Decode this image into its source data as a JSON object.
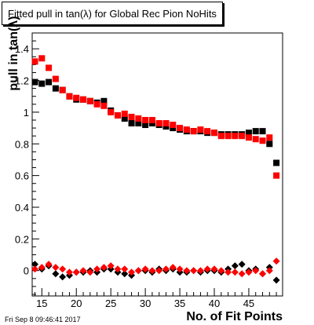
{
  "title": "Fitted pull in tan(λ) for Global Rec Pion NoHits",
  "datestamp": "Fri Sep  8 09:46:41 2017",
  "chart_data": {
    "type": "scatter",
    "title": "Fitted pull in tan(λ) for Global Rec Pion NoHits",
    "xlabel": "No. of Fit Points",
    "ylabel": "pull in tan(λ)",
    "xlim": [
      13.6,
      49.9
    ],
    "ylim": [
      -0.16,
      1.5
    ],
    "xticks": [
      15,
      20,
      25,
      30,
      35,
      40,
      45
    ],
    "yticks": [
      0,
      0.2,
      0.4,
      0.6,
      0.8,
      1,
      1.2,
      1.4
    ],
    "grid": false,
    "series": [
      {
        "color": "#000000",
        "marker": "square",
        "x": [
          14,
          15,
          16,
          17,
          18,
          19,
          20,
          21,
          22,
          23,
          24,
          25,
          26,
          27,
          28,
          29,
          30,
          31,
          32,
          33,
          34,
          35,
          36,
          37,
          38,
          39,
          40,
          41,
          42,
          43,
          44,
          45,
          46,
          47,
          48,
          49
        ],
        "y": [
          1.19,
          1.18,
          1.19,
          1.15,
          1.14,
          1.1,
          1.08,
          1.08,
          1.07,
          1.06,
          1.07,
          1.01,
          0.98,
          0.96,
          0.93,
          0.93,
          0.92,
          0.93,
          0.92,
          0.91,
          0.9,
          0.89,
          0.88,
          0.88,
          0.88,
          0.87,
          0.87,
          0.86,
          0.86,
          0.86,
          0.86,
          0.87,
          0.88,
          0.88,
          0.8,
          0.68
        ]
      },
      {
        "color": "#ff0000",
        "marker": "square",
        "x": [
          14,
          15,
          16,
          17,
          18,
          19,
          20,
          21,
          22,
          23,
          24,
          25,
          26,
          27,
          28,
          29,
          30,
          31,
          32,
          33,
          34,
          35,
          36,
          37,
          38,
          39,
          40,
          41,
          42,
          43,
          44,
          45,
          46,
          47,
          48,
          49
        ],
        "y": [
          1.32,
          1.34,
          1.28,
          1.21,
          1.14,
          1.1,
          1.09,
          1.08,
          1.07,
          1.05,
          1.04,
          1.0,
          0.98,
          0.99,
          0.97,
          0.96,
          0.95,
          0.95,
          0.93,
          0.93,
          0.92,
          0.9,
          0.89,
          0.88,
          0.89,
          0.88,
          0.87,
          0.85,
          0.85,
          0.85,
          0.85,
          0.84,
          0.83,
          0.82,
          0.84,
          0.6
        ]
      },
      {
        "color": "#000000",
        "marker": "diamond",
        "x": [
          14,
          15,
          16,
          17,
          18,
          19,
          20,
          21,
          22,
          23,
          24,
          25,
          26,
          27,
          28,
          29,
          30,
          31,
          32,
          33,
          34,
          35,
          36,
          37,
          38,
          39,
          40,
          41,
          42,
          43,
          44,
          45,
          46,
          47,
          48,
          49
        ],
        "y": [
          0.04,
          0.01,
          0.03,
          -0.02,
          -0.04,
          -0.03,
          -0.01,
          -0.01,
          0.0,
          -0.01,
          0.01,
          0.01,
          -0.01,
          -0.02,
          -0.03,
          0.0,
          0.0,
          -0.01,
          0.01,
          0.0,
          0.01,
          -0.01,
          -0.01,
          0.0,
          -0.01,
          0.0,
          0.0,
          -0.01,
          0.01,
          0.03,
          0.04,
          0.0,
          0.01,
          -0.02,
          0.02,
          -0.06
        ]
      },
      {
        "color": "#ff0000",
        "marker": "diamond",
        "x": [
          14,
          15,
          16,
          17,
          18,
          19,
          20,
          21,
          22,
          23,
          24,
          25,
          26,
          27,
          28,
          29,
          30,
          31,
          32,
          33,
          34,
          35,
          36,
          37,
          38,
          39,
          40,
          41,
          42,
          43,
          44,
          45,
          46,
          47,
          48,
          49
        ],
        "y": [
          0.01,
          0.02,
          0.04,
          0.02,
          0.01,
          -0.01,
          -0.01,
          0.0,
          -0.01,
          0.01,
          0.02,
          0.03,
          0.01,
          0.01,
          -0.01,
          0.0,
          0.01,
          0.0,
          0.0,
          0.01,
          0.02,
          0.01,
          0.0,
          0.0,
          0.0,
          0.01,
          0.01,
          0.0,
          -0.01,
          -0.01,
          -0.02,
          -0.01,
          0.0,
          -0.02,
          0.0,
          0.06
        ]
      }
    ]
  }
}
